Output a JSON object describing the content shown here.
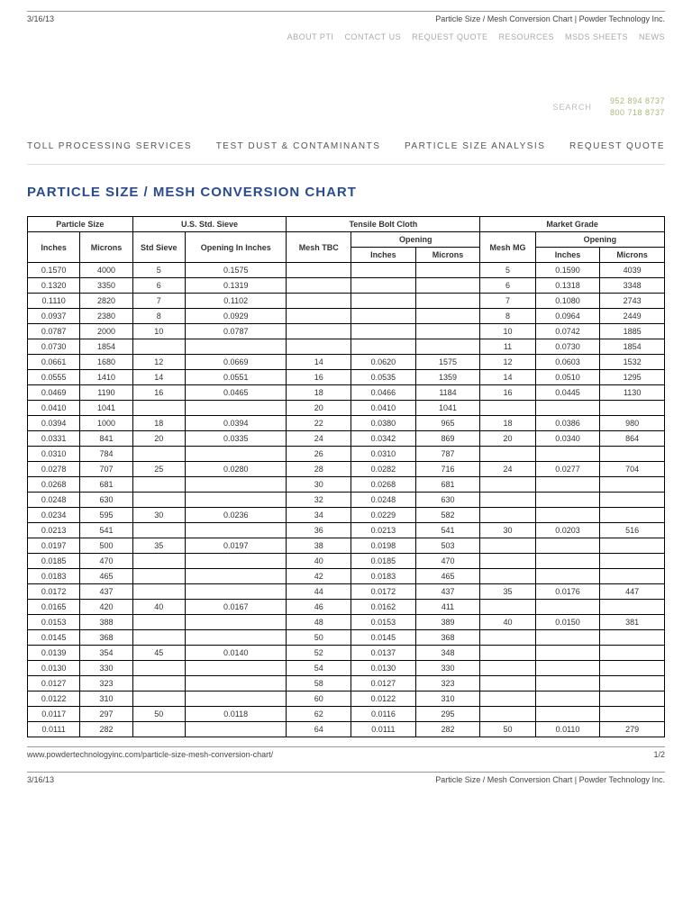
{
  "meta": {
    "date": "3/16/13",
    "pageTitle": "Particle Size / Mesh Conversion Chart | Powder Technology Inc.",
    "url": "www.powdertechnologyinc.com/particle-size-mesh-conversion-chart/",
    "pageNum": "1/2"
  },
  "utilNav": [
    "ABOUT PTI",
    "CONTACT US",
    "REQUEST QUOTE",
    "RESOURCES",
    "MSDS SHEETS",
    "NEWS"
  ],
  "search": {
    "label": "SEARCH"
  },
  "phones": {
    "p1": "952 894 8737",
    "p2": "800 718 8737"
  },
  "mainNav": [
    "TOLL PROCESSING SERVICES",
    "TEST DUST & CONTAMINANTS",
    "PARTICLE SIZE ANALYSIS",
    "REQUEST QUOTE"
  ],
  "heading": "PARTICLE SIZE / MESH CONVERSION CHART",
  "table": {
    "groupHeaders": [
      "Particle Size",
      "U.S. Std. Sieve",
      "Tensile Bolt Cloth",
      "Market Grade"
    ],
    "sub": {
      "inches": "Inches",
      "microns": "Microns",
      "stdSieve": "Std Sieve",
      "openingIn": "Opening In Inches",
      "meshTBC": "Mesh TBC",
      "opening": "Opening",
      "meshMG": "Mesh MG"
    },
    "rows": [
      [
        "0.1570",
        "4000",
        "5",
        "0.1575",
        "",
        "",
        "",
        "5",
        "0.1590",
        "4039"
      ],
      [
        "0.1320",
        "3350",
        "6",
        "0.1319",
        "",
        "",
        "",
        "6",
        "0.1318",
        "3348"
      ],
      [
        "0.1110",
        "2820",
        "7",
        "0.1102",
        "",
        "",
        "",
        "7",
        "0.1080",
        "2743"
      ],
      [
        "0.0937",
        "2380",
        "8",
        "0.0929",
        "",
        "",
        "",
        "8",
        "0.0964",
        "2449"
      ],
      [
        "0.0787",
        "2000",
        "10",
        "0.0787",
        "",
        "",
        "",
        "10",
        "0.0742",
        "1885"
      ],
      [
        "0.0730",
        "1854",
        "",
        "",
        "",
        "",
        "",
        "11",
        "0.0730",
        "1854"
      ],
      [
        "0.0661",
        "1680",
        "12",
        "0.0669",
        "14",
        "0.0620",
        "1575",
        "12",
        "0.0603",
        "1532"
      ],
      [
        "0.0555",
        "1410",
        "14",
        "0.0551",
        "16",
        "0.0535",
        "1359",
        "14",
        "0.0510",
        "1295"
      ],
      [
        "0.0469",
        "1190",
        "16",
        "0.0465",
        "18",
        "0.0466",
        "1184",
        "16",
        "0.0445",
        "1130"
      ],
      [
        "0.0410",
        "1041",
        "",
        "",
        "20",
        "0.0410",
        "1041",
        "",
        "",
        ""
      ],
      [
        "0.0394",
        "1000",
        "18",
        "0.0394",
        "22",
        "0.0380",
        "965",
        "18",
        "0.0386",
        "980"
      ],
      [
        "0.0331",
        "841",
        "20",
        "0.0335",
        "24",
        "0.0342",
        "869",
        "20",
        "0.0340",
        "864"
      ],
      [
        "0.0310",
        "784",
        "",
        "",
        "26",
        "0.0310",
        "787",
        "",
        "",
        ""
      ],
      [
        "0.0278",
        "707",
        "25",
        "0.0280",
        "28",
        "0.0282",
        "716",
        "24",
        "0.0277",
        "704"
      ],
      [
        "0.0268",
        "681",
        "",
        "",
        "30",
        "0.0268",
        "681",
        "",
        "",
        ""
      ],
      [
        "0.0248",
        "630",
        "",
        "",
        "32",
        "0.0248",
        "630",
        "",
        "",
        ""
      ],
      [
        "0.0234",
        "595",
        "30",
        "0.0236",
        "34",
        "0.0229",
        "582",
        "",
        "",
        ""
      ],
      [
        "0.0213",
        "541",
        "",
        "",
        "36",
        "0.0213",
        "541",
        "30",
        "0.0203",
        "516"
      ],
      [
        "0.0197",
        "500",
        "35",
        "0.0197",
        "38",
        "0.0198",
        "503",
        "",
        "",
        ""
      ],
      [
        "0.0185",
        "470",
        "",
        "",
        "40",
        "0.0185",
        "470",
        "",
        "",
        ""
      ],
      [
        "0.0183",
        "465",
        "",
        "",
        "42",
        "0.0183",
        "465",
        "",
        "",
        ""
      ],
      [
        "0.0172",
        "437",
        "",
        "",
        "44",
        "0.0172",
        "437",
        "35",
        "0.0176",
        "447"
      ],
      [
        "0.0165",
        "420",
        "40",
        "0.0167",
        "46",
        "0.0162",
        "411",
        "",
        "",
        ""
      ],
      [
        "0.0153",
        "388",
        "",
        "",
        "48",
        "0.0153",
        "389",
        "40",
        "0.0150",
        "381"
      ],
      [
        "0.0145",
        "368",
        "",
        "",
        "50",
        "0.0145",
        "368",
        "",
        "",
        ""
      ],
      [
        "0.0139",
        "354",
        "45",
        "0.0140",
        "52",
        "0.0137",
        "348",
        "",
        "",
        ""
      ],
      [
        "0.0130",
        "330",
        "",
        "",
        "54",
        "0.0130",
        "330",
        "",
        "",
        ""
      ],
      [
        "0.0127",
        "323",
        "",
        "",
        "58",
        "0.0127",
        "323",
        "",
        "",
        ""
      ],
      [
        "0.0122",
        "310",
        "",
        "",
        "60",
        "0.0122",
        "310",
        "",
        "",
        ""
      ],
      [
        "0.0117",
        "297",
        "50",
        "0.0118",
        "62",
        "0.0116",
        "295",
        "",
        "",
        ""
      ],
      [
        "0.0111",
        "282",
        "",
        "",
        "64",
        "0.0111",
        "282",
        "50",
        "0.0110",
        "279"
      ]
    ]
  },
  "colWidths": [
    "57",
    "57",
    "57",
    "110",
    "70",
    "70",
    "70",
    "60",
    "70",
    "70"
  ]
}
